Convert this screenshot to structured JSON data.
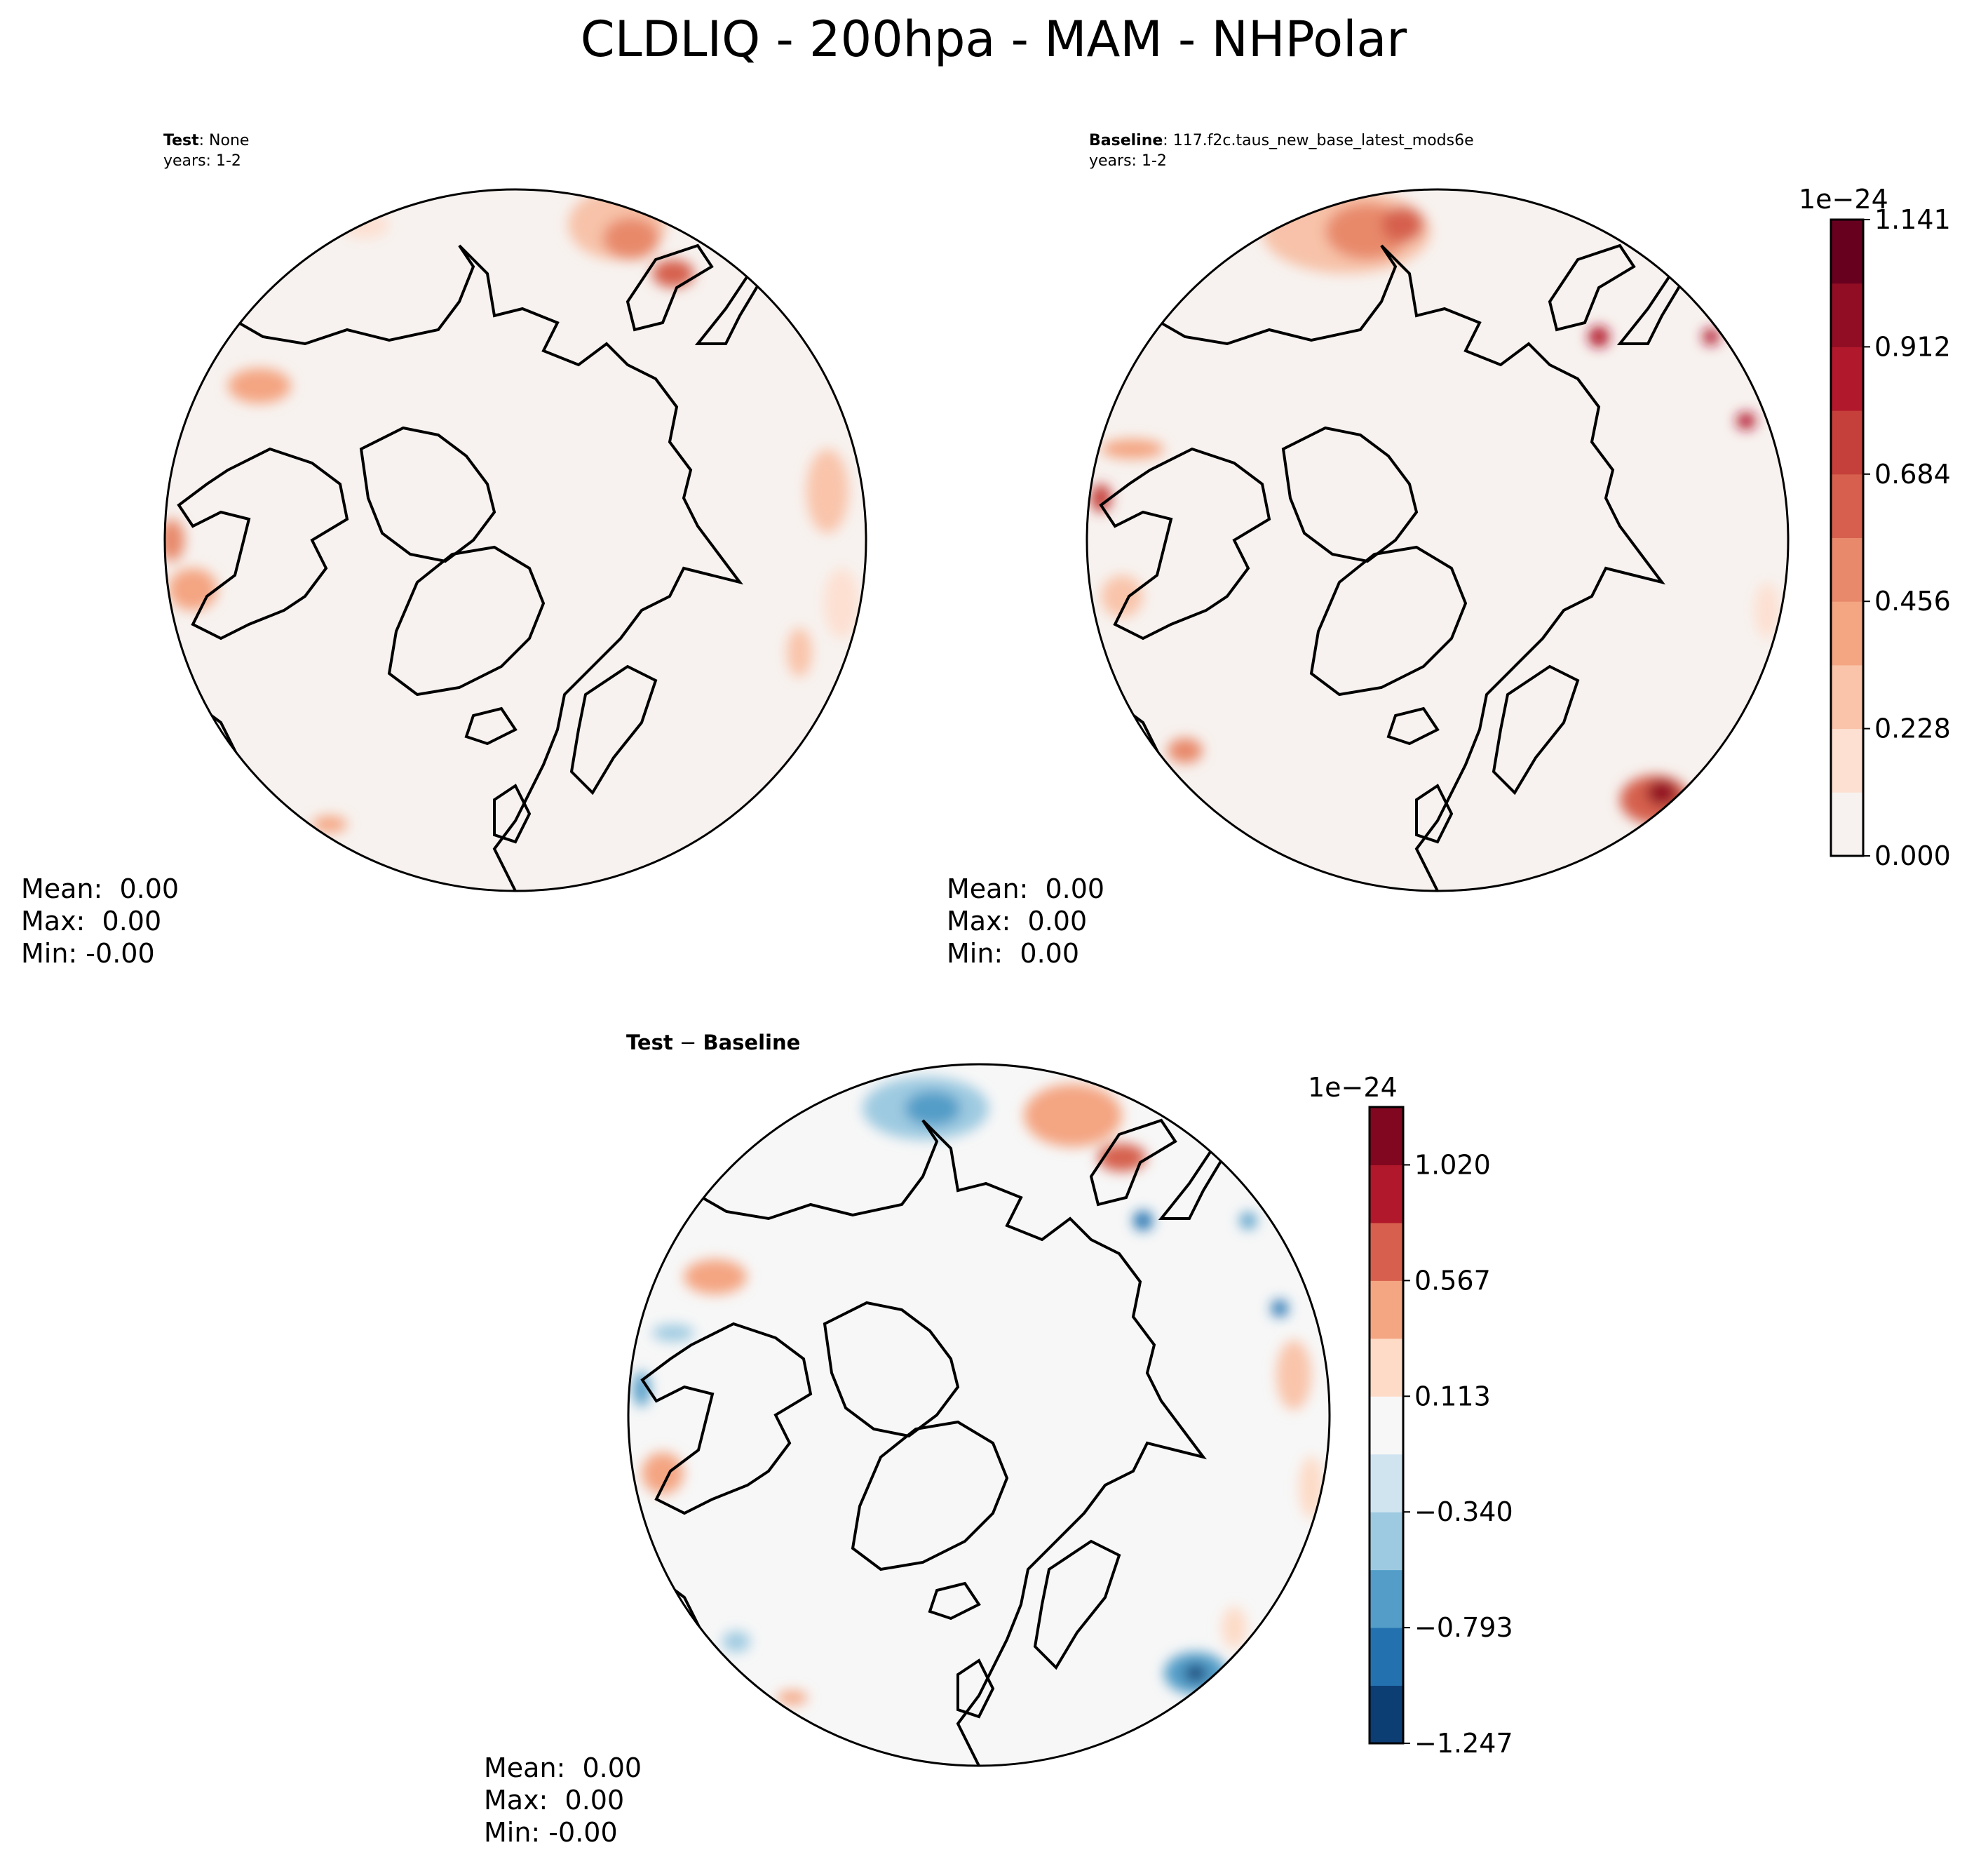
{
  "figure": {
    "title": "CLDLIQ - 200hpa - MAM - NHPolar"
  },
  "panels": [
    {
      "id": "test",
      "header_bold": "Test",
      "header_rest": ": None",
      "years": "years: 1-2",
      "stats": {
        "mean": "Mean:  0.00",
        "max": "Max:  0.00",
        "min": "Min: -0.00"
      }
    },
    {
      "id": "baseline",
      "header_bold": "Baseline",
      "header_rest": ": 117.f2c.taus_new_base_latest_mods6e",
      "years": "years: 1-2",
      "stats": {
        "mean": "Mean:  0.00",
        "max": "Max:  0.00",
        "min": "Min:  0.00"
      }
    },
    {
      "id": "diff",
      "header_bold": "Test",
      "header_minus": " − ",
      "header_bold2": "Baseline",
      "stats": {
        "mean": "Mean:  0.00",
        "max": "Max:  0.00",
        "min": "Min: -0.00"
      }
    }
  ],
  "colorbars": {
    "main": {
      "offset_label": "1e−24",
      "ticks": [
        "0.000",
        "0.228",
        "0.456",
        "0.684",
        "0.912",
        "1.141"
      ],
      "colors": [
        "#f7f2ef",
        "#fde0d2",
        "#f9c4aa",
        "#f4a582",
        "#e8896b",
        "#d6604d",
        "#c6403b",
        "#b2182b",
        "#910d24",
        "#67001f"
      ]
    },
    "diff": {
      "offset_label": "1e−24",
      "ticks": [
        "−1.247",
        "−0.793",
        "−0.340",
        "0.113",
        "0.567",
        "1.020"
      ],
      "colors": [
        "#0c3d73",
        "#2471b0",
        "#539dc8",
        "#9ecae1",
        "#d0e4f0",
        "#f7f7f7",
        "#fddbc7",
        "#f4a582",
        "#d6604d",
        "#b2182b",
        "#80071f"
      ]
    }
  },
  "chart_data": [
    {
      "type": "heatmap",
      "title": "Test: None",
      "subtitle": "years: 1-2",
      "projection": "NHPolar",
      "variable": "CLDLIQ",
      "level": "200hpa",
      "season": "MAM",
      "colorbar_ticks": [
        0.0,
        0.228,
        0.456,
        0.684,
        0.912,
        1.141
      ],
      "colorbar_scale": "1e-24",
      "stats": {
        "mean": 0.0,
        "max": 0.0,
        "min": -0.0
      }
    },
    {
      "type": "heatmap",
      "title": "Baseline: 117.f2c.taus_new_base_latest_mods6e",
      "subtitle": "years: 1-2",
      "projection": "NHPolar",
      "variable": "CLDLIQ",
      "level": "200hpa",
      "season": "MAM",
      "colorbar_ticks": [
        0.0,
        0.228,
        0.456,
        0.684,
        0.912,
        1.141
      ],
      "colorbar_scale": "1e-24",
      "stats": {
        "mean": 0.0,
        "max": 0.0,
        "min": 0.0
      }
    },
    {
      "type": "heatmap",
      "title": "Test − Baseline",
      "projection": "NHPolar",
      "variable": "CLDLIQ",
      "level": "200hpa",
      "season": "MAM",
      "colorbar_ticks": [
        -1.247,
        -0.793,
        -0.34,
        0.113,
        0.567,
        1.02
      ],
      "colorbar_scale": "1e-24",
      "stats": {
        "mean": 0.0,
        "max": 0.0,
        "min": -0.0
      }
    }
  ]
}
